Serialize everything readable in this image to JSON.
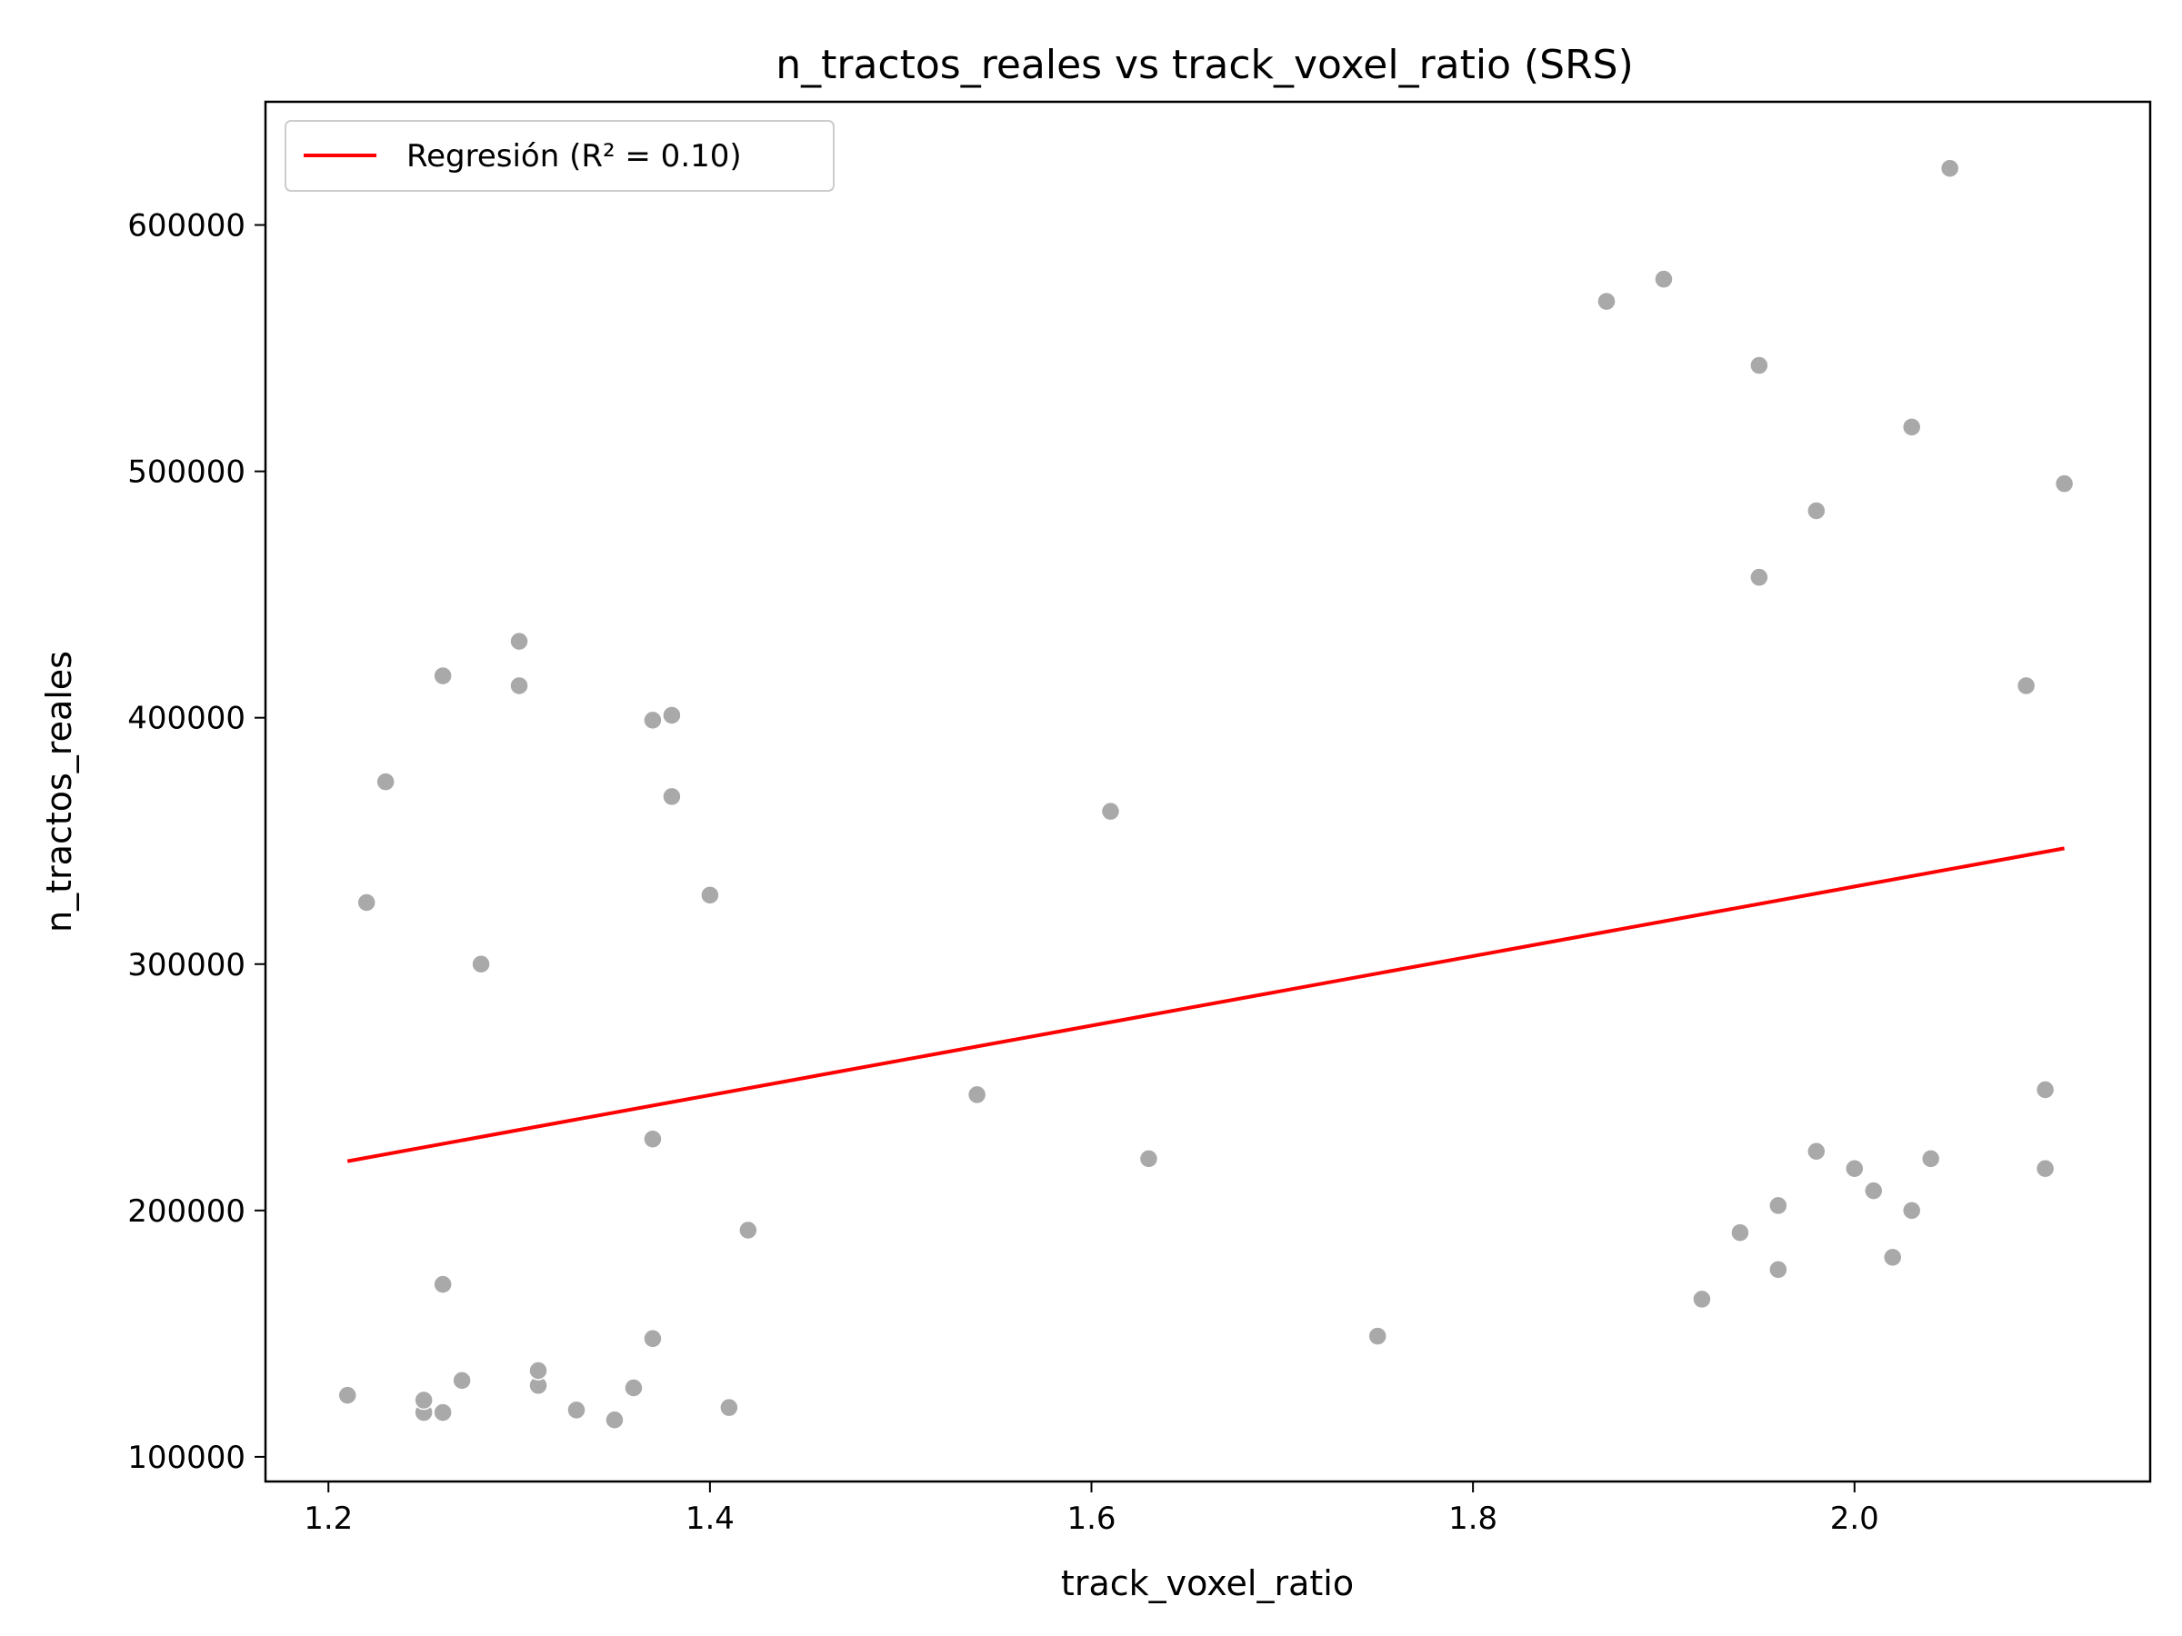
{
  "chart_data": {
    "type": "scatter",
    "title": "n_tractos_reales vs track_voxel_ratio (SRS)",
    "xlabel": "track_voxel_ratio",
    "ylabel": "n_tractos_reales",
    "xlim": [
      1.167,
      2.155
    ],
    "ylim": [
      90000,
      650000
    ],
    "xticks": [
      1.2,
      1.4,
      1.6,
      1.8,
      2.0
    ],
    "xtick_labels": [
      "1.2",
      "1.4",
      "1.6",
      "1.8",
      "2.0"
    ],
    "yticks": [
      100000,
      200000,
      300000,
      400000,
      500000,
      600000
    ],
    "ytick_labels": [
      "100000",
      "200000",
      "300000",
      "400000",
      "500000",
      "600000"
    ],
    "grid": false,
    "legend": {
      "position": "upper-left",
      "entries": [
        "Regresión (R² = 0.10)"
      ]
    },
    "colors": {
      "points": "#a9a9a9",
      "regression": "#ff0000"
    },
    "series": [
      {
        "kind": "points",
        "x": [
          1.21,
          1.25,
          1.25,
          1.26,
          1.26,
          1.27,
          1.31,
          1.31,
          1.33,
          1.35,
          1.36,
          1.37,
          1.41,
          1.42,
          1.37,
          1.26,
          1.22,
          1.23,
          1.28,
          1.26,
          1.3,
          1.3,
          1.37,
          1.38,
          1.38,
          1.4,
          1.54,
          1.61,
          1.63,
          1.75,
          1.87,
          1.9,
          1.95,
          1.95,
          1.98,
          2.03,
          2.05,
          2.11,
          2.09,
          1.92,
          1.94,
          1.96,
          1.96,
          1.98,
          2.0,
          2.01,
          2.02,
          2.03,
          2.04,
          2.1,
          2.1
        ],
        "y": [
          125000,
          118000,
          123000,
          118000,
          170000,
          131000,
          129000,
          135000,
          119000,
          115000,
          128000,
          148000,
          120000,
          192000,
          229000,
          417000,
          325000,
          374000,
          300000,
          417000,
          431000,
          413000,
          399000,
          401000,
          368000,
          328000,
          247000,
          362000,
          221000,
          149000,
          569000,
          578000,
          543000,
          457000,
          484000,
          518000,
          623000,
          495000,
          413000,
          164000,
          191000,
          202000,
          176000,
          224000,
          217000,
          208000,
          181000,
          200000,
          221000,
          249000,
          217000
        ]
      },
      {
        "kind": "line",
        "name": "Regresión (R² = 0.10)",
        "x": [
          1.21,
          2.11
        ],
        "y": [
          220000,
          347000
        ]
      }
    ]
  }
}
